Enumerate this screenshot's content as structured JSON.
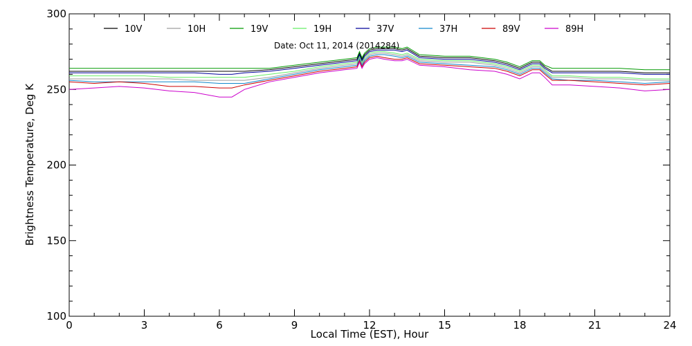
{
  "chart_data": {
    "type": "line",
    "title": "",
    "annotation": "Date: Oct 11, 2014 (2014284)",
    "xlabel": "Local Time (EST), Hour",
    "ylabel": "Brightness Temperature, Deg K",
    "xlim": [
      0,
      24
    ],
    "ylim": [
      100,
      300
    ],
    "xticks": [
      0,
      3,
      6,
      9,
      12,
      15,
      18,
      21,
      24
    ],
    "yticks": [
      100,
      150,
      200,
      250,
      300
    ],
    "grid": false,
    "legend_position": "top",
    "x": [
      0,
      1,
      2,
      3,
      4,
      5,
      6,
      6.5,
      7,
      8,
      9,
      10,
      11,
      11.5,
      11.6,
      11.7,
      11.8,
      12,
      12.3,
      12.6,
      13,
      13.3,
      13.5,
      14,
      15,
      16,
      17,
      17.5,
      18,
      18.5,
      18.8,
      19,
      19.3,
      20,
      21,
      22,
      23,
      24
    ],
    "series": [
      {
        "name": "10V",
        "color": "#000000",
        "values": [
          262,
          262,
          262,
          262,
          262,
          262,
          262,
          262,
          262,
          263,
          265,
          267,
          269,
          270,
          274,
          270,
          273,
          276,
          277,
          277,
          277,
          276,
          277,
          272,
          271,
          271,
          269,
          267,
          264,
          268,
          268,
          265,
          262,
          262,
          262,
          262,
          261,
          261
        ]
      },
      {
        "name": "10H",
        "color": "#9e9e9e",
        "values": [
          257,
          257,
          257,
          257,
          257,
          256,
          256,
          256,
          256,
          258,
          261,
          264,
          266,
          267,
          271,
          267,
          270,
          273,
          274,
          274,
          273,
          272,
          273,
          269,
          268,
          268,
          266,
          264,
          261,
          265,
          265,
          262,
          258,
          258,
          257,
          257,
          256,
          256
        ]
      },
      {
        "name": "19V",
        "color": "#009900",
        "values": [
          264,
          264,
          264,
          264,
          264,
          264,
          264,
          264,
          264,
          264,
          266,
          268,
          270,
          271,
          275,
          271,
          274,
          277,
          278,
          278,
          278,
          277,
          278,
          273,
          272,
          272,
          270,
          268,
          265,
          269,
          269,
          266,
          264,
          264,
          264,
          264,
          263,
          263
        ]
      },
      {
        "name": "19H",
        "color": "#66ee66",
        "values": [
          259,
          259,
          259,
          259,
          258,
          258,
          258,
          258,
          258,
          260,
          262,
          265,
          267,
          268,
          272,
          268,
          271,
          274,
          275,
          275,
          274,
          273,
          274,
          270,
          269,
          269,
          267,
          265,
          262,
          266,
          266,
          263,
          259,
          259,
          258,
          258,
          257,
          257
        ]
      },
      {
        "name": "37V",
        "color": "#000099",
        "values": [
          261,
          261,
          261,
          261,
          261,
          261,
          260,
          260,
          261,
          262,
          264,
          266,
          268,
          269,
          273,
          269,
          272,
          275,
          276,
          276,
          276,
          275,
          276,
          271,
          270,
          270,
          268,
          266,
          263,
          267,
          267,
          264,
          261,
          261,
          261,
          261,
          260,
          260
        ]
      },
      {
        "name": "37H",
        "color": "#1188cc",
        "values": [
          256,
          255,
          255,
          255,
          255,
          255,
          254,
          254,
          254,
          257,
          260,
          263,
          265,
          266,
          270,
          266,
          269,
          272,
          273,
          273,
          272,
          271,
          272,
          268,
          267,
          266,
          265,
          263,
          260,
          264,
          264,
          261,
          257,
          256,
          256,
          255,
          254,
          255
        ]
      },
      {
        "name": "89V",
        "color": "#cc0000",
        "values": [
          255,
          254,
          255,
          254,
          252,
          252,
          251,
          251,
          253,
          256,
          259,
          262,
          264,
          265,
          269,
          265,
          268,
          271,
          272,
          271,
          270,
          270,
          271,
          267,
          266,
          265,
          264,
          262,
          259,
          263,
          263,
          260,
          256,
          256,
          255,
          254,
          253,
          254
        ]
      },
      {
        "name": "89H",
        "color": "#cc00cc",
        "values": [
          250,
          251,
          252,
          251,
          249,
          248,
          245,
          245,
          250,
          255,
          258,
          261,
          263,
          264,
          268,
          264,
          267,
          270,
          271,
          270,
          269,
          269,
          270,
          266,
          265,
          263,
          262,
          260,
          257,
          261,
          261,
          258,
          253,
          253,
          252,
          251,
          249,
          250
        ]
      }
    ]
  }
}
